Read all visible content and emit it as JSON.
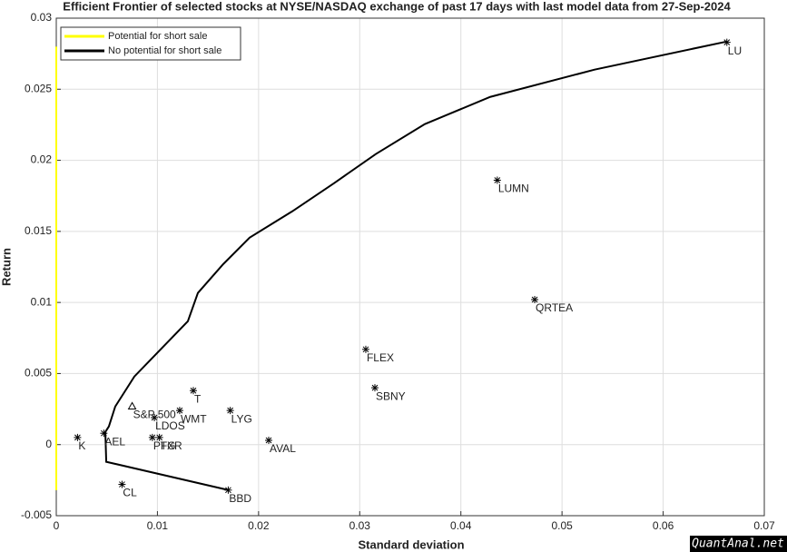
{
  "chart_data": {
    "type": "scatter",
    "title": "Efficient Frontier of selected stocks at NYSE/NASDAQ exchange of past 17 days with last model data from 27-Sep-2024",
    "x_label": "Standard deviation",
    "y_label": "Return",
    "xlim": [
      0,
      0.07
    ],
    "xticks": [
      0,
      0.01,
      0.02,
      0.03,
      0.04,
      0.05,
      0.06,
      0.07
    ],
    "ylim": [
      -0.005,
      0.03
    ],
    "yticks": [
      -0.005,
      0,
      0.005,
      0.01,
      0.015,
      0.02,
      0.025,
      0.03
    ],
    "grid": true,
    "legend": "upper left",
    "series": [
      {
        "name": "Potential for short sale",
        "color": "#ffff00",
        "x": [
          0,
          0
        ],
        "values": [
          -0.0032,
          0.028
        ]
      },
      {
        "name": "No potential for short sale",
        "color": "#000000",
        "x": [
          0.01696,
          0.00494,
          0.00485,
          0.0052,
          0.00583,
          0.00772,
          0.01059,
          0.01301,
          0.014,
          0.01651,
          0.01911,
          0.02333,
          0.02746,
          0.03159,
          0.03644,
          0.0429,
          0.05322,
          0.06632
        ],
        "values": [
          -0.00319,
          -0.00121,
          0.00089,
          0.00128,
          0.00268,
          0.00479,
          0.0069,
          0.00868,
          0.01067,
          0.0127,
          0.01456,
          0.01641,
          0.01839,
          0.02044,
          0.02255,
          0.02446,
          0.02638,
          0.02836
        ]
      }
    ],
    "points": [
      {
        "label": "LU",
        "x": 0.0663,
        "y": 0.0283
      },
      {
        "label": "LUMN",
        "x": 0.0436,
        "y": 0.0186
      },
      {
        "label": "QRTEA",
        "x": 0.0473,
        "y": 0.0102
      },
      {
        "label": "FLEX",
        "x": 0.0306,
        "y": 0.0067
      },
      {
        "label": "SBNY",
        "x": 0.0315,
        "y": 0.004
      },
      {
        "label": "T",
        "x": 0.01355,
        "y": 0.0038
      },
      {
        "label": "LYG",
        "x": 0.0172,
        "y": 0.0024
      },
      {
        "label": "WMT",
        "x": 0.0122,
        "y": 0.0024
      },
      {
        "label": "LDOS",
        "x": 0.0097,
        "y": 0.0019
      },
      {
        "label": "S&P 500",
        "x": 0.0075,
        "y": 0.0027,
        "marker": "triangle"
      },
      {
        "label": "K",
        "x": 0.0021,
        "y": 0.0005
      },
      {
        "label": "AEL",
        "x": 0.0047,
        "y": 0.0008
      },
      {
        "label": "AVAL",
        "x": 0.021,
        "y": 0.0003
      },
      {
        "label": "PFG",
        "x": 0.0095,
        "y": 0.0005
      },
      {
        "label": "TXR",
        "x": 0.0102,
        "y": 0.0005
      },
      {
        "label": "CL",
        "x": 0.0065,
        "y": -0.0028
      },
      {
        "label": "BBD",
        "x": 0.017,
        "y": -0.0032
      }
    ],
    "watermark": "QuantAnal.net"
  }
}
